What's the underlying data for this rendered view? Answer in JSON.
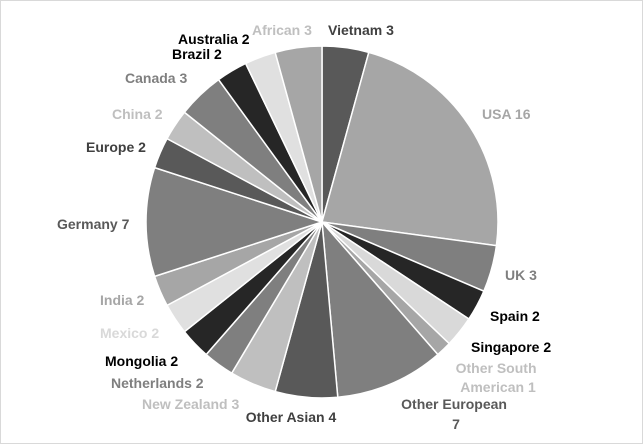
{
  "chart_data": {
    "type": "pie",
    "title": "",
    "legend": "none",
    "slices": [
      {
        "label": "Vietnam",
        "value": 3,
        "text": "Vietnam 3",
        "color": "#595959",
        "label_color": "#404040"
      },
      {
        "label": "USA",
        "value": 16,
        "text": "USA 16",
        "color": "#a6a6a6",
        "label_color": "#a6a6a6"
      },
      {
        "label": "UK",
        "value": 3,
        "text": "UK 3",
        "color": "#7f7f7f",
        "label_color": "#7f7f7f"
      },
      {
        "label": "Spain",
        "value": 2,
        "text": "Spain 2",
        "color": "#262626",
        "label_color": "#000000"
      },
      {
        "label": "Singapore",
        "value": 2,
        "text": "Singapore 2",
        "color": "#d9d9d9",
        "label_color": "#000000"
      },
      {
        "label": "Other South American",
        "value": 1,
        "text": "Other South American 1",
        "color": "#a6a6a6",
        "label_color": "#bfbfbf"
      },
      {
        "label": "Other European",
        "value": 7,
        "text": "Other European 7",
        "color": "#7f7f7f",
        "label_color": "#595959"
      },
      {
        "label": "Other Asian",
        "value": 4,
        "text": "Other Asian 4",
        "color": "#595959",
        "label_color": "#404040"
      },
      {
        "label": "New Zealand",
        "value": 3,
        "text": "New Zealand 3",
        "color": "#bfbfbf",
        "label_color": "#bfbfbf"
      },
      {
        "label": "Netherlands",
        "value": 2,
        "text": "Netherlands 2",
        "color": "#7f7f7f",
        "label_color": "#7f7f7f"
      },
      {
        "label": "Mongolia",
        "value": 2,
        "text": "Mongolia 2",
        "color": "#262626",
        "label_color": "#000000"
      },
      {
        "label": "Mexico",
        "value": 2,
        "text": "Mexico 2",
        "color": "#e0e0e0",
        "label_color": "#d9d9d9"
      },
      {
        "label": "India",
        "value": 2,
        "text": "India 2",
        "color": "#a6a6a6",
        "label_color": "#a6a6a6"
      },
      {
        "label": "Germany",
        "value": 7,
        "text": "Germany 7",
        "color": "#7f7f7f",
        "label_color": "#595959"
      },
      {
        "label": "Europe",
        "value": 2,
        "text": "Europe 2",
        "color": "#595959",
        "label_color": "#404040"
      },
      {
        "label": "China",
        "value": 2,
        "text": "China 2",
        "color": "#bfbfbf",
        "label_color": "#bfbfbf"
      },
      {
        "label": "Canada",
        "value": 3,
        "text": "Canada 3",
        "color": "#7f7f7f",
        "label_color": "#7f7f7f"
      },
      {
        "label": "Brazil",
        "value": 2,
        "text": "Brazil 2",
        "color": "#262626",
        "label_color": "#000000"
      },
      {
        "label": "Australia",
        "value": 2,
        "text": "Australia 2",
        "color": "#e0e0e0",
        "label_color": "#000000"
      },
      {
        "label": "African",
        "value": 3,
        "text": "African 3",
        "color": "#a6a6a6",
        "label_color": "#bfbfbf"
      }
    ]
  }
}
